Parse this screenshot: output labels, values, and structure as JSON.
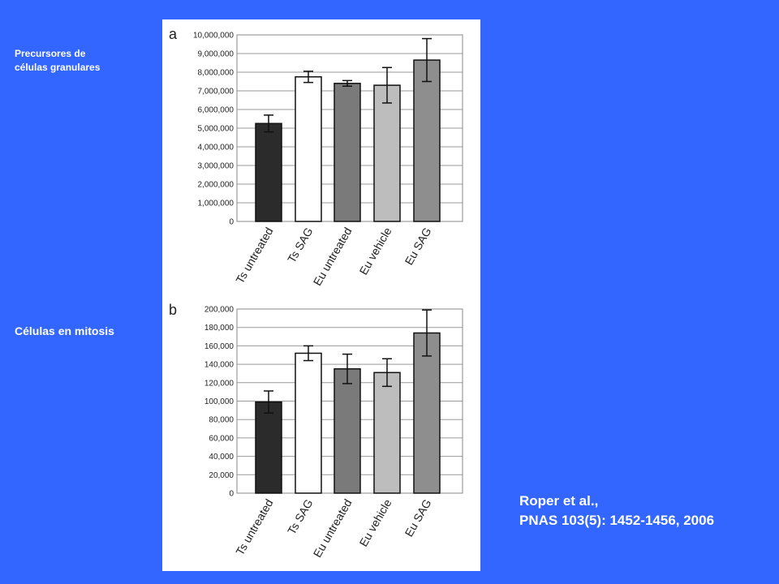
{
  "labels": {
    "precursores_line1": "Precursores de",
    "precursores_line2": "células granulares",
    "mitosis": "Células en mitosis"
  },
  "citation": {
    "line1": "Roper et al.,",
    "line2": "PNAS 103(5): 1452-1456, 2006"
  },
  "chart_data": [
    {
      "type": "bar",
      "panel_label": "a",
      "categories": [
        "Ts untreated",
        "Ts SAG",
        "Eu untreated",
        "Eu vehicle",
        "Eu SAG"
      ],
      "values": [
        5250000,
        7750000,
        7400000,
        7300000,
        8650000
      ],
      "error": [
        450000,
        300000,
        150000,
        950000,
        1150000
      ],
      "bar_colors": [
        "#2b2b2b",
        "#ffffff",
        "#7a7a7a",
        "#bdbdbd",
        "#8e8e8e"
      ],
      "ylim": [
        0,
        10000000
      ],
      "yticks": [
        0,
        1000000,
        2000000,
        3000000,
        4000000,
        5000000,
        6000000,
        7000000,
        8000000,
        9000000,
        10000000
      ],
      "ytick_labels": [
        "0",
        "1,000,000",
        "2,000,000",
        "3,000,000",
        "4,000,000",
        "5,000,000",
        "6,000,000",
        "7,000,000",
        "8,000,000",
        "9,000,000",
        "10,000,000"
      ],
      "title": "",
      "xlabel": "",
      "ylabel": "",
      "grid": true
    },
    {
      "type": "bar",
      "panel_label": "b",
      "categories": [
        "Ts untreated",
        "Ts SAG",
        "Eu untreated",
        "Eu vehicle",
        "Eu SAG"
      ],
      "values": [
        99000,
        152000,
        135000,
        131000,
        174000
      ],
      "error": [
        12000,
        8000,
        16000,
        15000,
        25000
      ],
      "bar_colors": [
        "#2b2b2b",
        "#ffffff",
        "#7a7a7a",
        "#bdbdbd",
        "#8e8e8e"
      ],
      "ylim": [
        0,
        200000
      ],
      "yticks": [
        0,
        20000,
        40000,
        60000,
        80000,
        100000,
        120000,
        140000,
        160000,
        180000,
        200000
      ],
      "ytick_labels": [
        "0",
        "20,000",
        "40,000",
        "60,000",
        "80,000",
        "100,000",
        "120,000",
        "140,000",
        "160,000",
        "180,000",
        "200,000"
      ],
      "title": "",
      "xlabel": "",
      "ylabel": "",
      "grid": true
    }
  ]
}
